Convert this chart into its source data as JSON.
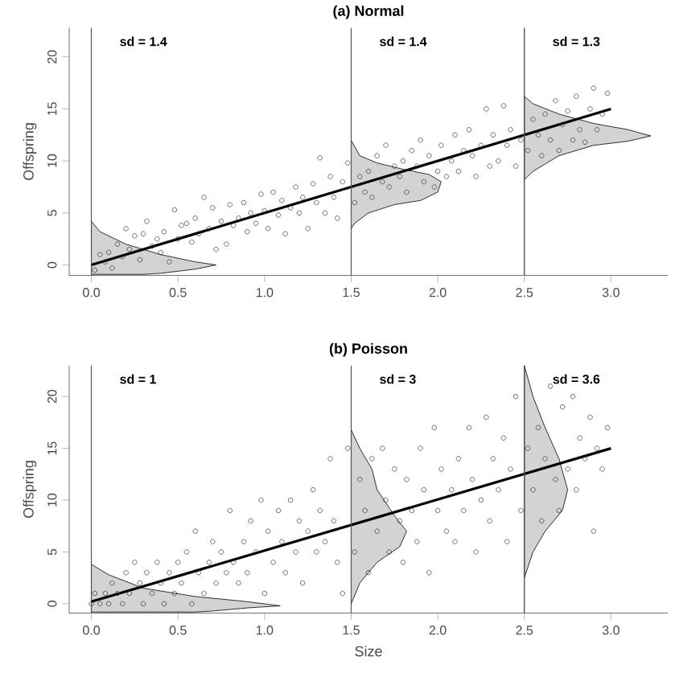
{
  "chart_data": [
    {
      "type": "scatter",
      "title": "(a) Normal",
      "ylabel": "Offspring",
      "annotations": [
        "sd = 1.4",
        "sd = 1.4",
        "sd = 1.3"
      ],
      "xlim": [
        -0.128,
        3.328
      ],
      "ylim": [
        -1,
        22.8
      ],
      "xticks": [
        {
          "value": 0,
          "label": "0.0"
        },
        {
          "value": 0.5,
          "label": "0.5"
        },
        {
          "value": 1,
          "label": "1.0"
        },
        {
          "value": 1.5,
          "label": "1.5"
        },
        {
          "value": 2,
          "label": "2.0"
        },
        {
          "value": 2.5,
          "label": "2.5"
        },
        {
          "value": 3,
          "label": "3.0"
        }
      ],
      "yticks": [
        0,
        5,
        10,
        15,
        20
      ],
      "ref_lines": [
        {
          "axis": "x",
          "value": 0,
          "color": "#555555"
        },
        {
          "axis": "x",
          "value": 1.5,
          "color": "#555555"
        },
        {
          "axis": "x",
          "value": 2.5,
          "color": "#555555"
        }
      ],
      "series": [
        {
          "type": "area",
          "color": "#d3d3d3",
          "x": [
            0,
            0.05,
            0.2,
            0.4,
            0.6,
            0.72,
            0.6,
            0.4,
            0.3,
            0
          ],
          "values": [
            4.2,
            3.2,
            2.0,
            1.0,
            0.3,
            0,
            -0.4,
            -0.8,
            -0.9,
            -0.9
          ]
        },
        {
          "type": "area",
          "color": "#d3d3d3",
          "x": [
            1.5,
            1.55,
            1.65,
            1.8,
            1.95,
            2.02,
            2.0,
            1.9,
            1.75,
            1.6,
            1.52,
            1.5
          ],
          "values": [
            12,
            10.5,
            9.8,
            9.2,
            8.7,
            8,
            7,
            6.2,
            5.8,
            5,
            4,
            3.5
          ]
        },
        {
          "type": "area",
          "color": "#d3d3d3",
          "x": [
            2.5,
            2.55,
            2.7,
            2.9,
            3.1,
            3.23,
            3.1,
            2.9,
            2.7,
            2.55,
            2.5
          ],
          "values": [
            16.2,
            15.5,
            14.5,
            13.6,
            13,
            12.4,
            11.9,
            11.5,
            10.5,
            9,
            8.2
          ]
        },
        {
          "color": "#333333",
          "marker": "circle",
          "x": [
            0.02,
            0.05,
            0.08,
            0.1,
            0.12,
            0.15,
            0.18,
            0.2,
            0.22,
            0.25,
            0.28,
            0.3,
            0.32,
            0.35,
            0.38,
            0.4,
            0.42,
            0.45,
            0.48,
            0.5,
            0.52,
            0.55,
            0.58,
            0.6,
            0.62,
            0.65,
            0.68,
            0.7,
            0.72,
            0.75,
            0.78,
            0.8,
            0.82,
            0.85,
            0.88,
            0.9,
            0.92,
            0.95,
            0.98,
            1.0,
            1.02,
            1.05,
            1.08,
            1.1,
            1.12,
            1.15,
            1.18,
            1.2,
            1.22,
            1.25,
            1.28,
            1.3,
            1.32,
            1.35,
            1.38,
            1.4,
            1.42,
            1.45,
            1.48,
            1.52,
            1.55,
            1.58,
            1.6,
            1.62,
            1.65,
            1.68,
            1.7,
            1.72,
            1.75,
            1.78,
            1.8,
            1.82,
            1.85,
            1.88,
            1.9,
            1.92,
            1.95,
            1.98,
            2.0,
            2.02,
            2.05,
            2.08,
            2.1,
            2.12,
            2.15,
            2.18,
            2.2,
            2.22,
            2.25,
            2.28,
            2.3,
            2.32,
            2.35,
            2.38,
            2.4,
            2.42,
            2.45,
            2.48,
            2.52,
            2.55,
            2.58,
            2.6,
            2.62,
            2.65,
            2.68,
            2.7,
            2.72,
            2.75,
            2.78,
            2.8,
            2.82,
            2.85,
            2.88,
            2.9,
            2.92,
            2.95,
            2.98
          ],
          "values": [
            -0.5,
            1.0,
            0.3,
            1.2,
            -0.3,
            2.0,
            0.8,
            3.5,
            1.5,
            2.8,
            0.5,
            3.0,
            4.2,
            1.8,
            2.5,
            1.2,
            3.2,
            0.3,
            5.3,
            2.5,
            3.8,
            4.0,
            2.2,
            4.5,
            3.0,
            6.5,
            3.5,
            5.5,
            1.5,
            4.2,
            2.0,
            5.8,
            3.8,
            4.5,
            6.0,
            3.2,
            5.0,
            4.0,
            6.8,
            5.2,
            3.5,
            7.0,
            4.8,
            6.2,
            3.0,
            5.5,
            7.5,
            5.0,
            6.5,
            3.5,
            7.8,
            6.0,
            10.3,
            5.0,
            8.5,
            6.5,
            4.5,
            8.0,
            9.8,
            6.0,
            8.5,
            7.0,
            9.0,
            6.5,
            10.5,
            8.0,
            11.5,
            7.5,
            9.5,
            8.5,
            10.0,
            7.0,
            11.0,
            9.5,
            12.0,
            8.0,
            10.5,
            7.5,
            9.0,
            11.5,
            8.5,
            10.0,
            12.5,
            9.0,
            11.0,
            13.0,
            10.5,
            8.5,
            11.5,
            15.0,
            9.5,
            12.5,
            10.0,
            15.3,
            11.5,
            13.0,
            9.5,
            12.0,
            11.0,
            14.0,
            12.5,
            10.5,
            14.5,
            12.0,
            15.8,
            11.0,
            13.5,
            14.8,
            12.0,
            16.2,
            13.0,
            11.8,
            15.0,
            17.0,
            13.0,
            14.5,
            16.5
          ]
        },
        {
          "type": "line",
          "color": "#000000",
          "x": [
            0,
            3
          ],
          "values": [
            0,
            15
          ]
        }
      ]
    },
    {
      "type": "scatter",
      "title": "(b) Poisson",
      "xlabel": "Size",
      "ylabel": "Offspring",
      "annotations": [
        "sd = 1",
        "sd = 3",
        "sd = 3.6"
      ],
      "xlim": [
        -0.128,
        3.328
      ],
      "ylim": [
        -0.9,
        23
      ],
      "xticks": [
        {
          "value": 0,
          "label": "0.0"
        },
        {
          "value": 0.5,
          "label": "0.5"
        },
        {
          "value": 1,
          "label": "1.0"
        },
        {
          "value": 1.5,
          "label": "1.5"
        },
        {
          "value": 2,
          "label": "2.0"
        },
        {
          "value": 2.5,
          "label": "2.5"
        },
        {
          "value": 3,
          "label": "3.0"
        }
      ],
      "yticks": [
        0,
        5,
        10,
        15,
        20
      ],
      "ref_lines": [
        {
          "axis": "x",
          "value": 0,
          "color": "#555555"
        },
        {
          "axis": "x",
          "value": 1.5,
          "color": "#555555"
        },
        {
          "axis": "x",
          "value": 2.5,
          "color": "#555555"
        }
      ],
      "series": [
        {
          "type": "area",
          "color": "#d3d3d3",
          "x": [
            0,
            0.1,
            0.3,
            0.6,
            0.9,
            1.09,
            0.9,
            0.7,
            0.6,
            0
          ],
          "values": [
            3.8,
            2.8,
            1.5,
            0.7,
            0.2,
            -0.2,
            -0.4,
            -0.7,
            -0.8,
            -0.8
          ]
        },
        {
          "type": "area",
          "color": "#d3d3d3",
          "x": [
            1.5,
            1.55,
            1.62,
            1.65,
            1.75,
            1.82,
            1.78,
            1.65,
            1.55,
            1.5
          ],
          "values": [
            16.8,
            15,
            13,
            11,
            8.5,
            7,
            5.5,
            4,
            2,
            0
          ]
        },
        {
          "type": "area",
          "color": "#d3d3d3",
          "x": [
            2.5,
            2.55,
            2.62,
            2.7,
            2.75,
            2.72,
            2.62,
            2.55,
            2.5
          ],
          "values": [
            23,
            20,
            17,
            14,
            11,
            9,
            7,
            5,
            2.5
          ]
        },
        {
          "color": "#333333",
          "marker": "circle",
          "x": [
            0.0,
            0.02,
            0.05,
            0.08,
            0.1,
            0.12,
            0.15,
            0.18,
            0.2,
            0.22,
            0.25,
            0.28,
            0.3,
            0.32,
            0.35,
            0.38,
            0.4,
            0.42,
            0.45,
            0.48,
            0.5,
            0.52,
            0.55,
            0.58,
            0.6,
            0.62,
            0.65,
            0.68,
            0.7,
            0.72,
            0.75,
            0.78,
            0.8,
            0.82,
            0.85,
            0.88,
            0.9,
            0.92,
            0.95,
            0.98,
            1.0,
            1.02,
            1.05,
            1.08,
            1.1,
            1.12,
            1.15,
            1.18,
            1.2,
            1.22,
            1.25,
            1.28,
            1.3,
            1.32,
            1.35,
            1.38,
            1.4,
            1.42,
            1.45,
            1.48,
            1.52,
            1.55,
            1.58,
            1.6,
            1.62,
            1.65,
            1.68,
            1.7,
            1.72,
            1.75,
            1.78,
            1.8,
            1.82,
            1.85,
            1.88,
            1.9,
            1.92,
            1.95,
            1.98,
            2.0,
            2.02,
            2.05,
            2.08,
            2.1,
            2.12,
            2.15,
            2.18,
            2.2,
            2.22,
            2.25,
            2.28,
            2.3,
            2.32,
            2.35,
            2.38,
            2.4,
            2.42,
            2.45,
            2.48,
            2.52,
            2.55,
            2.58,
            2.6,
            2.62,
            2.65,
            2.68,
            2.7,
            2.72,
            2.75,
            2.78,
            2.8,
            2.82,
            2.85,
            2.88,
            2.9,
            2.92,
            2.95,
            2.98
          ],
          "values": [
            0,
            1,
            0,
            1,
            0,
            2,
            1,
            0,
            3,
            1,
            4,
            2,
            0,
            3,
            1,
            4,
            2,
            0,
            3,
            1,
            4,
            2,
            5,
            0,
            7,
            3,
            1,
            4,
            6,
            2,
            5,
            3,
            9,
            4,
            2,
            6,
            3,
            8,
            5,
            10,
            1,
            7,
            4,
            9,
            6,
            3,
            10,
            5,
            8,
            2,
            7,
            11,
            5,
            9,
            6,
            14,
            8,
            4,
            1,
            15,
            5,
            12,
            9,
            3,
            14,
            7,
            15,
            10,
            5,
            13,
            8,
            4,
            12,
            9,
            6,
            15,
            11,
            3,
            17,
            9,
            13,
            7,
            11,
            6,
            14,
            9,
            17,
            12,
            5,
            10,
            18,
            8,
            14,
            11,
            16,
            6,
            13,
            20,
            9,
            15,
            11,
            17,
            8,
            14,
            21,
            12,
            9,
            19,
            13,
            20,
            11,
            16,
            14,
            18,
            7,
            15,
            13,
            17
          ]
        },
        {
          "type": "line",
          "color": "#000000",
          "x": [
            0,
            3
          ],
          "values": [
            0.2,
            15
          ]
        }
      ]
    }
  ]
}
